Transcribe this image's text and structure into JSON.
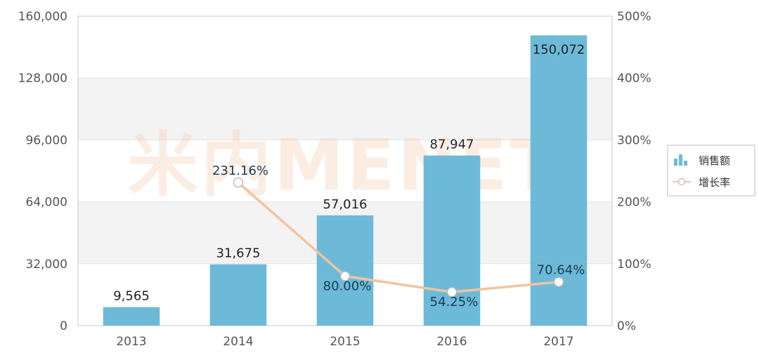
{
  "chart_data": {
    "type": "bar",
    "categories": [
      "2013",
      "2014",
      "2015",
      "2016",
      "2017"
    ],
    "series": [
      {
        "name": "销售额",
        "type": "bar",
        "axis": "left",
        "values": [
          9565,
          31675,
          57016,
          87947,
          150072
        ],
        "labels": [
          "9,565",
          "31,675",
          "57,016",
          "87,947",
          "150,072"
        ]
      },
      {
        "name": "增长率",
        "type": "line",
        "axis": "right",
        "values": [
          null,
          231.16,
          80.0,
          54.25,
          70.64
        ],
        "labels": [
          "",
          "231.16%",
          "80.00%",
          "54.25%",
          "70.64%"
        ]
      }
    ],
    "y_left": {
      "range": [
        0,
        160000
      ],
      "ticks": [
        "0",
        "32,000",
        "64,000",
        "96,000",
        "128,000",
        "160,000"
      ]
    },
    "y_right": {
      "range": [
        0,
        500
      ],
      "ticks": [
        "0%",
        "100%",
        "200%",
        "300%",
        "400%",
        "500%"
      ]
    },
    "grid": true,
    "legend": {
      "placement": "right"
    },
    "colors": {
      "bar": "#6cbad8",
      "line": "#f0c4a0",
      "marker_edge": "#bbbbbb",
      "band": "#f3f3f3",
      "frame": "#c8c8c8",
      "watermark": "#f5c8a6"
    },
    "watermark": "米内MENET"
  }
}
